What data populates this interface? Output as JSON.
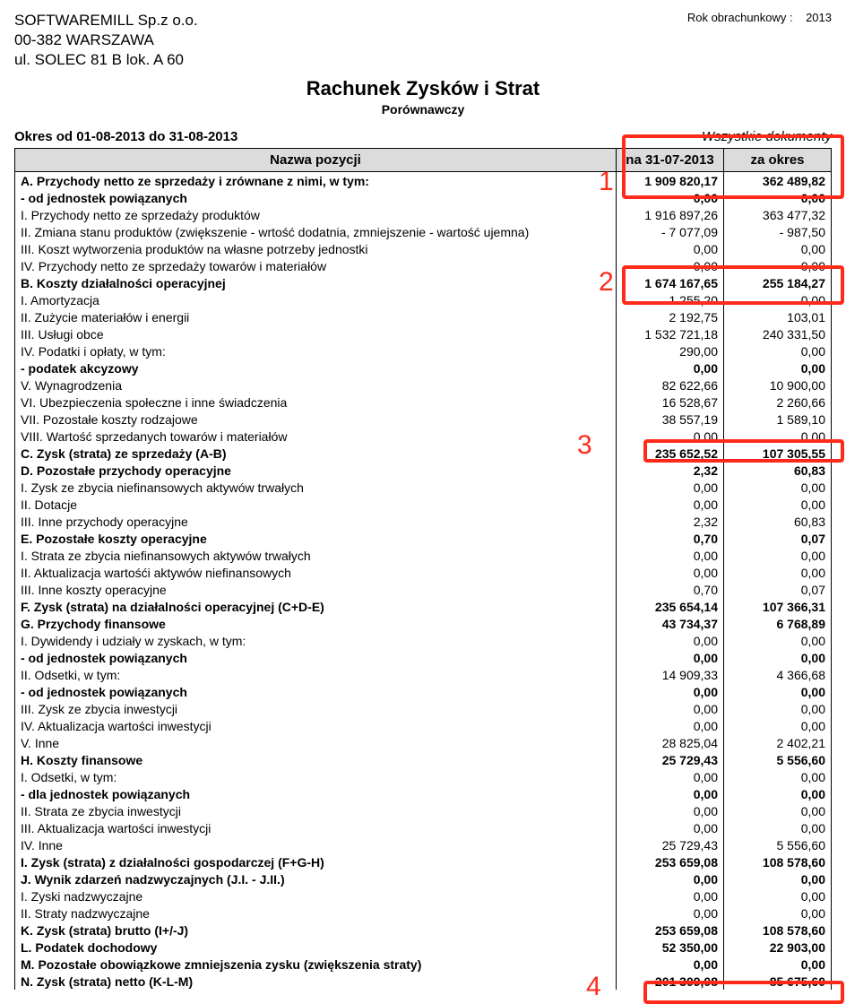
{
  "company": {
    "name": "SOFTWAREMILL Sp.z o.o.",
    "postal": "00-382 WARSZAWA",
    "street": "ul. SOLEC 81 B lok. A 60"
  },
  "fiscal_year_label": "Rok obrachunkowy :",
  "fiscal_year": "2013",
  "title": "Rachunek Zysków i Strat",
  "subtitle": "Porównawczy",
  "period_text": "Okres od 01-08-2013 do 31-08-2013",
  "all_docs": "Wszystkie dokumenty",
  "headers": {
    "name": "Nazwa pozycji",
    "col1": "na 31-07-2013",
    "col2": "za okres"
  },
  "annotations": {
    "box_color": "#ff2a1a",
    "labels": [
      "1",
      "2",
      "3",
      "4"
    ]
  },
  "rows": [
    {
      "label": "A. Przychody netto ze sprzedaży i zrównane z nimi, w tym:",
      "c1": "1 909 820,17",
      "c2": "362 489,82",
      "bold": true,
      "indent": 0
    },
    {
      "label": "- od jednostek powiązanych",
      "c1": "0,00",
      "c2": "0,00",
      "bold": true,
      "indent": 2
    },
    {
      "label": "I. Przychody netto ze sprzedaży produktów",
      "c1": "1 916 897,26",
      "c2": "363 477,32",
      "bold": false,
      "indent": 1
    },
    {
      "label": "II. Zmiana stanu produktów (zwiększenie - wrtość dodatnia, zmniejszenie - wartość ujemna)",
      "c1": "- 7 077,09",
      "c2": "-  987,50",
      "bold": false,
      "indent": 1
    },
    {
      "label": "III. Koszt wytworzenia produktów na własne potrzeby jednostki",
      "c1": "0,00",
      "c2": "0,00",
      "bold": false,
      "indent": 1
    },
    {
      "label": "IV. Przychody netto ze sprzedaży towarów i materiałów",
      "c1": "0,00",
      "c2": "0,00",
      "bold": false,
      "indent": 1
    },
    {
      "label": "B. Koszty działalności operacyjnej",
      "c1": "1 674 167,65",
      "c2": "255 184,27",
      "bold": true,
      "indent": 0
    },
    {
      "label": "I. Amortyzacja",
      "c1": "1 255,20",
      "c2": "0,00",
      "bold": false,
      "indent": 1
    },
    {
      "label": "II. Zużycie materiałów i energii",
      "c1": "2 192,75",
      "c2": "103,01",
      "bold": false,
      "indent": 1
    },
    {
      "label": "III. Usługi obce",
      "c1": "1 532 721,18",
      "c2": "240 331,50",
      "bold": false,
      "indent": 1
    },
    {
      "label": "IV. Podatki i opłaty, w tym:",
      "c1": "290,00",
      "c2": "0,00",
      "bold": false,
      "indent": 1
    },
    {
      "label": "- podatek akcyzowy",
      "c1": "0,00",
      "c2": "0,00",
      "bold": true,
      "indent": 2
    },
    {
      "label": "V. Wynagrodzenia",
      "c1": "82 622,66",
      "c2": "10 900,00",
      "bold": false,
      "indent": 1
    },
    {
      "label": "VI. Ubezpieczenia społeczne i inne świadczenia",
      "c1": "16 528,67",
      "c2": "2 260,66",
      "bold": false,
      "indent": 1
    },
    {
      "label": "VII. Pozostałe koszty rodzajowe",
      "c1": "38 557,19",
      "c2": "1 589,10",
      "bold": false,
      "indent": 1
    },
    {
      "label": "VIII. Wartość sprzedanych towarów i materiałów",
      "c1": "0,00",
      "c2": "0,00",
      "bold": false,
      "indent": 1
    },
    {
      "label": "C. Zysk (strata) ze sprzedaży (A-B)",
      "c1": "235 652,52",
      "c2": "107 305,55",
      "bold": true,
      "indent": 0
    },
    {
      "label": "D. Pozostałe przychody operacyjne",
      "c1": "2,32",
      "c2": "60,83",
      "bold": true,
      "indent": 0
    },
    {
      "label": "I. Zysk ze zbycia niefinansowych aktywów trwałych",
      "c1": "0,00",
      "c2": "0,00",
      "bold": false,
      "indent": 1
    },
    {
      "label": "II. Dotacje",
      "c1": "0,00",
      "c2": "0,00",
      "bold": false,
      "indent": 1
    },
    {
      "label": "III. Inne przychody operacyjne",
      "c1": "2,32",
      "c2": "60,83",
      "bold": false,
      "indent": 1
    },
    {
      "label": "E. Pozostałe koszty operacyjne",
      "c1": "0,70",
      "c2": "0,07",
      "bold": true,
      "indent": 0
    },
    {
      "label": "I. Strata ze zbycia niefinansowych aktywów trwałych",
      "c1": "0,00",
      "c2": "0,00",
      "bold": false,
      "indent": 1
    },
    {
      "label": "II. Aktualizacja wartośći aktywów niefinansowych",
      "c1": "0,00",
      "c2": "0,00",
      "bold": false,
      "indent": 1
    },
    {
      "label": "III. Inne koszty operacyjne",
      "c1": "0,70",
      "c2": "0,07",
      "bold": false,
      "indent": 1
    },
    {
      "label": "F. Zysk (strata) na działalności operacyjnej (C+D-E)",
      "c1": "235 654,14",
      "c2": "107 366,31",
      "bold": true,
      "indent": 0
    },
    {
      "label": "G. Przychody finansowe",
      "c1": "43 734,37",
      "c2": "6 768,89",
      "bold": true,
      "indent": 0
    },
    {
      "label": "I. Dywidendy i udziały w zyskach, w tym:",
      "c1": "0,00",
      "c2": "0,00",
      "bold": false,
      "indent": 1
    },
    {
      "label": "- od jednostek powiązanych",
      "c1": "0,00",
      "c2": "0,00",
      "bold": true,
      "indent": 2
    },
    {
      "label": "II. Odsetki, w tym:",
      "c1": "14 909,33",
      "c2": "4 366,68",
      "bold": false,
      "indent": 1
    },
    {
      "label": "- od jednostek powiązanych",
      "c1": "0,00",
      "c2": "0,00",
      "bold": true,
      "indent": 2
    },
    {
      "label": "III. Zysk ze zbycia inwestycji",
      "c1": "0,00",
      "c2": "0,00",
      "bold": false,
      "indent": 1
    },
    {
      "label": "IV. Aktualizacja wartości inwestycji",
      "c1": "0,00",
      "c2": "0,00",
      "bold": false,
      "indent": 1
    },
    {
      "label": "V. Inne",
      "c1": "28 825,04",
      "c2": "2 402,21",
      "bold": false,
      "indent": 1
    },
    {
      "label": "H. Koszty finansowe",
      "c1": "25 729,43",
      "c2": "5 556,60",
      "bold": true,
      "indent": 0
    },
    {
      "label": "I. Odsetki, w tym:",
      "c1": "0,00",
      "c2": "0,00",
      "bold": false,
      "indent": 1
    },
    {
      "label": "- dla jednostek powiązanych",
      "c1": "0,00",
      "c2": "0,00",
      "bold": true,
      "indent": 2
    },
    {
      "label": "II. Strata ze zbycia inwestycji",
      "c1": "0,00",
      "c2": "0,00",
      "bold": false,
      "indent": 1
    },
    {
      "label": "III. Aktualizacja wartości inwestycji",
      "c1": "0,00",
      "c2": "0,00",
      "bold": false,
      "indent": 1
    },
    {
      "label": "IV. Inne",
      "c1": "25 729,43",
      "c2": "5 556,60",
      "bold": false,
      "indent": 1
    },
    {
      "label": "I. Zysk (strata) z działalności gospodarczej (F+G-H)",
      "c1": "253 659,08",
      "c2": "108 578,60",
      "bold": true,
      "indent": 0
    },
    {
      "label": "J. Wynik zdarzeń nadzwyczajnych (J.I. - J.II.)",
      "c1": "0,00",
      "c2": "0,00",
      "bold": true,
      "indent": 0
    },
    {
      "label": "I. Zyski nadzwyczajne",
      "c1": "0,00",
      "c2": "0,00",
      "bold": false,
      "indent": 1
    },
    {
      "label": "II. Straty nadzwyczajne",
      "c1": "0,00",
      "c2": "0,00",
      "bold": false,
      "indent": 1
    },
    {
      "label": "K. Zysk (strata) brutto (I+/-J)",
      "c1": "253 659,08",
      "c2": "108 578,60",
      "bold": true,
      "indent": 0
    },
    {
      "label": "L. Podatek dochodowy",
      "c1": "52 350,00",
      "c2": "22 903,00",
      "bold": true,
      "indent": 0
    },
    {
      "label": "M. Pozostałe obowiązkowe zmniejszenia zysku (zwiększenia straty)",
      "c1": "0,00",
      "c2": "0,00",
      "bold": true,
      "indent": 0
    },
    {
      "label": "N. Zysk (strata) netto (K-L-M)",
      "c1": "201 309,08",
      "c2": "85 675,60",
      "bold": true,
      "indent": 0
    }
  ]
}
